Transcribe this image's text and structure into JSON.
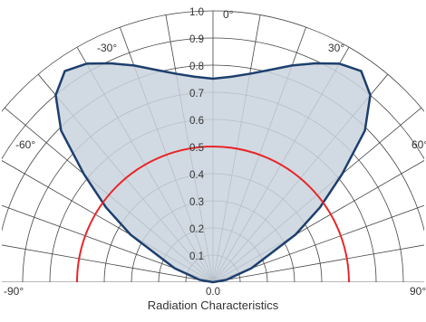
{
  "chart_data": {
    "type": "polar",
    "title": "Radiation Characteristics",
    "angle_ticks": [
      "-90°",
      "-60°",
      "-30°",
      "0°",
      "30°",
      "60°",
      "90°"
    ],
    "radial_ticks": [
      "0.0",
      "0.1",
      "0.2",
      "0.3",
      "0.4",
      "0.5",
      "0.6",
      "0.7",
      "0.8",
      "0.9",
      "1.0"
    ],
    "rlim": [
      0,
      1
    ],
    "theta_range": [
      -90,
      90
    ],
    "grid": true,
    "series": [
      {
        "color": "#1d3f6e",
        "fill": "#c9d3dd",
        "theta": [
          -90,
          -80,
          -70,
          -60,
          -55,
          -50,
          -45,
          -40,
          -35,
          -30,
          -25,
          -20,
          -15,
          -10,
          -5,
          0,
          5,
          10,
          15,
          20,
          25,
          30,
          35,
          40,
          45,
          50,
          55,
          60,
          70,
          80,
          90
        ],
        "r": [
          0.0,
          0.05,
          0.15,
          0.35,
          0.48,
          0.62,
          0.79,
          0.9,
          0.95,
          0.93,
          0.89,
          0.85,
          0.81,
          0.78,
          0.76,
          0.75,
          0.76,
          0.78,
          0.81,
          0.85,
          0.89,
          0.93,
          0.95,
          0.9,
          0.79,
          0.62,
          0.48,
          0.35,
          0.15,
          0.05,
          0.0
        ]
      },
      {
        "color": "#e8262a",
        "theta": [
          -90,
          -60,
          -30,
          0,
          30,
          60,
          90
        ],
        "r": [
          0.5,
          0.5,
          0.5,
          0.5,
          0.5,
          0.5,
          0.5
        ]
      }
    ]
  }
}
